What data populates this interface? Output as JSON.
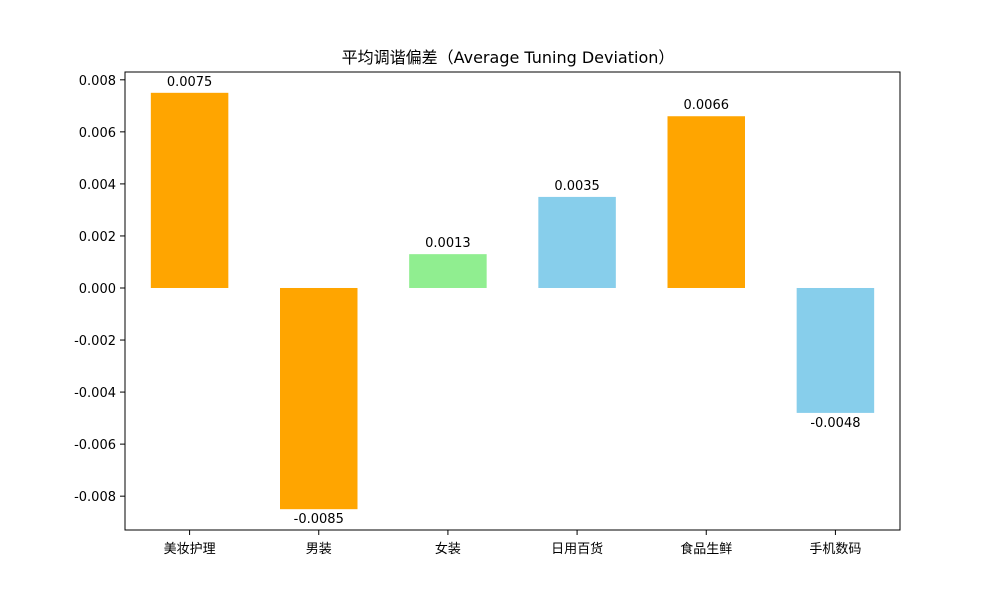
{
  "chart_data": {
    "type": "bar",
    "title": "平均调谐偏差（Average Tuning Deviation）",
    "xlabel": "",
    "ylabel": "",
    "categories": [
      "美妆护理",
      "男装",
      "女装",
      "日用百货",
      "食品生鲜",
      "手机数码"
    ],
    "values": [
      0.0075,
      -0.0085,
      0.0013,
      0.0035,
      0.0066,
      -0.0048
    ],
    "value_labels": [
      "0.0075",
      "-0.0085",
      "0.0013",
      "0.0035",
      "0.0066",
      "-0.0048"
    ],
    "bar_colors": [
      "#FFA500",
      "#FFA500",
      "#90EE90",
      "#87CEEB",
      "#FFA500",
      "#87CEEB"
    ],
    "ylim": [
      -0.0093,
      0.0083
    ],
    "yticks": [
      -0.008,
      -0.006,
      -0.004,
      -0.002,
      0.0,
      0.002,
      0.004,
      0.006,
      0.008
    ],
    "ytick_labels": [
      "-0.008",
      "-0.006",
      "-0.004",
      "-0.002",
      "0.000",
      "0.002",
      "0.004",
      "0.006",
      "0.008"
    ],
    "grid": false,
    "legend": "none"
  }
}
